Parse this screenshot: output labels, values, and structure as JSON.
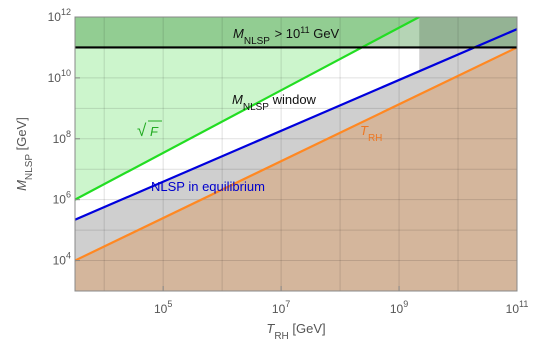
{
  "chart_data": {
    "type": "line",
    "xlabel": {
      "symbol": "T",
      "sub": "RH",
      "unit": " [GeV]"
    },
    "ylabel": {
      "symbol": "M",
      "sub": "NLSP",
      "unit": " [GeV]"
    },
    "x_scale": "log",
    "y_scale": "log",
    "xlim": [
      3200.0,
      100000000000.0
    ],
    "ylim": [
      1000.0,
      1000000000000.0
    ],
    "grid": true,
    "x_ticks": [
      {
        "value": 100000.0,
        "base": "10",
        "exp": "5"
      },
      {
        "value": 10000000.0,
        "base": "10",
        "exp": "7"
      },
      {
        "value": 1000000000.0,
        "base": "10",
        "exp": "9"
      },
      {
        "value": 100000000000.0,
        "base": "10",
        "exp": "11"
      }
    ],
    "y_ticks": [
      {
        "value": 10000.0,
        "base": "10",
        "exp": "4"
      },
      {
        "value": 1000000.0,
        "base": "10",
        "exp": "6"
      },
      {
        "value": 100000000.0,
        "base": "10",
        "exp": "8"
      },
      {
        "value": 10000000000.0,
        "base": "10",
        "exp": "10"
      },
      {
        "value": 1000000000000.0,
        "base": "10",
        "exp": "12"
      }
    ],
    "series": [
      {
        "key": "sqrtF",
        "color": "#22dd22",
        "x": [
          3200.0,
          2200000000.0
        ],
        "y": [
          1000000.0,
          1000000000000.0
        ]
      },
      {
        "key": "equilibrium",
        "color": "#0000dd",
        "x": [
          3200.0,
          100000000000.0
        ],
        "y": [
          220000.0,
          400000000000.0
        ]
      },
      {
        "key": "trh",
        "color": "#ff8822",
        "x": [
          3200.0,
          100000000000.0
        ],
        "y": [
          10000.0,
          100000000000.0
        ]
      },
      {
        "key": "limit",
        "color": "#000000",
        "x": [
          3200.0,
          100000000000.0
        ],
        "y": [
          100000000000.0,
          100000000000.0
        ]
      }
    ],
    "annotations": {
      "upper": {
        "symbol": "M",
        "sub": "NLSP",
        "text": " > 10",
        "sup": "11",
        "unit": "  GeV"
      },
      "window": {
        "symbol": "M",
        "sub": "NLSP",
        "text": "  window"
      },
      "sqrtF": {
        "radical": "√",
        "symbol": "F",
        "color": "#22aa22"
      },
      "trh": {
        "symbol": "T",
        "sub": "RH",
        "color": "#ee7722"
      },
      "equilibrium": {
        "text": "NLSP in equilibrium",
        "color": "#0000cc"
      }
    },
    "colors": {
      "green_region": "#ccf5cc",
      "gray_region": "#cfcfcf",
      "tan_region": "#d4b69c",
      "excluded_overlay": "#1a7a1a"
    }
  }
}
